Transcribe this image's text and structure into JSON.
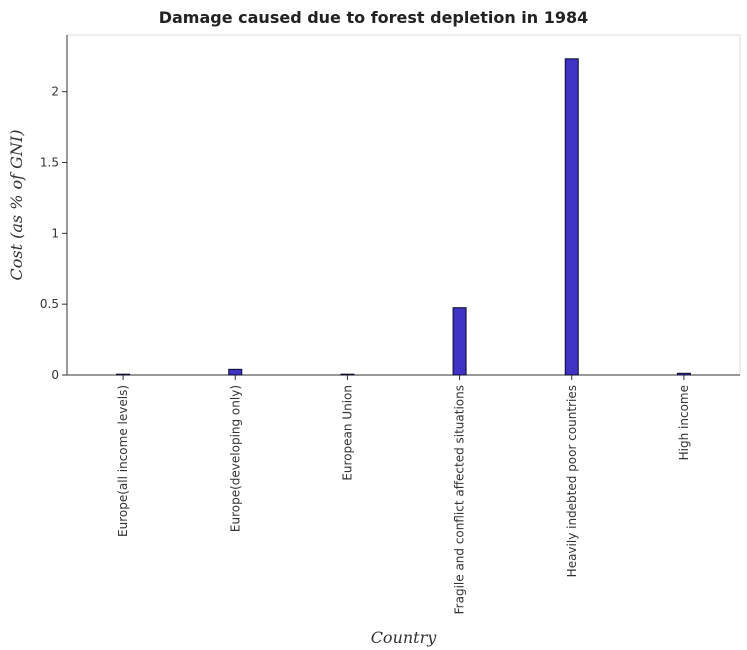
{
  "chart_data": {
    "type": "bar",
    "title": "Damage caused due to forest depletion in 1984",
    "xlabel": "Country",
    "ylabel": "Cost (as % of GNI)",
    "categories": [
      "Europe(all income levels)",
      "Europe(developing only)",
      "European Union",
      "Fragile and conflict affected situations",
      "Heavily indebted poor countries",
      "High income"
    ],
    "values": [
      0.004,
      0.04,
      0.001,
      0.475,
      2.232,
      0.012
    ],
    "ylim": [
      0,
      2.4
    ],
    "yticks": [
      0,
      0.5,
      1,
      1.5,
      2
    ],
    "ytick_labels": [
      "0",
      "0.5",
      "1",
      "1.5",
      "2"
    ],
    "grid": false,
    "legend": "none",
    "bar_color": "#3f33c4",
    "bar_edge_color": "#0b0b2a"
  }
}
